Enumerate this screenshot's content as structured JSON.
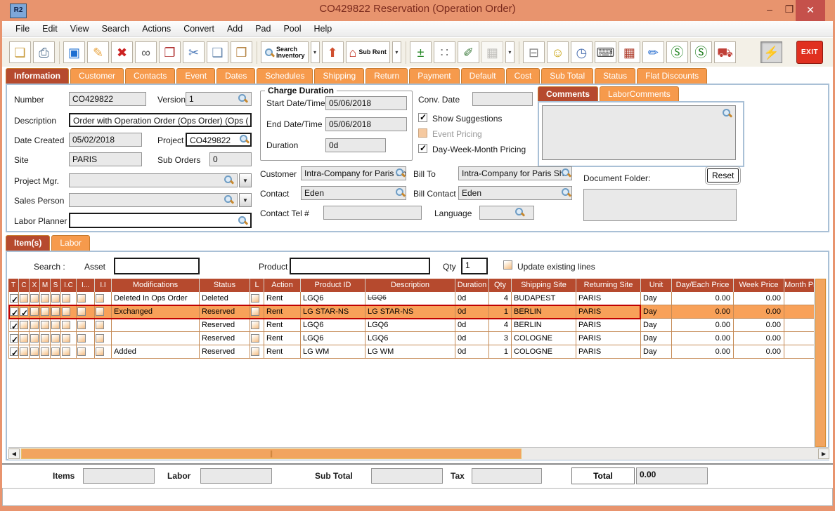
{
  "window": {
    "icon_text": "R2",
    "title": "CO429822 Reservation (Operation Order)",
    "controls": {
      "minimize": "–",
      "maximize": "❐",
      "close": "✕"
    }
  },
  "menu": {
    "items": [
      "File",
      "Edit",
      "View",
      "Search",
      "Actions",
      "Convert",
      "Add",
      "Pad",
      "Pool",
      "Help"
    ]
  },
  "toolbar": {
    "buttons": [
      {
        "name": "new-document",
        "glyph": "❏",
        "tint": "#c89a3a"
      },
      {
        "name": "print",
        "glyph": "⎙",
        "tint": "#4a6a8a"
      },
      {
        "name": "save",
        "glyph": "▣",
        "tint": "#1d6fd1",
        "sep": true
      },
      {
        "name": "edit-pencil",
        "glyph": "✎",
        "tint": "#e8a33d"
      },
      {
        "name": "delete",
        "glyph": "✖",
        "tint": "#cc2222"
      },
      {
        "name": "find-binoculars",
        "glyph": "∞",
        "tint": "#555555"
      },
      {
        "name": "copy-transfer",
        "glyph": "❐",
        "tint": "#b03030"
      },
      {
        "name": "cut-scissors",
        "glyph": "✂",
        "tint": "#4a78b8"
      },
      {
        "name": "copy",
        "glyph": "❑",
        "tint": "#6a8ab0"
      },
      {
        "name": "paste-clipboard",
        "glyph": "❒",
        "tint": "#b8884a"
      },
      {
        "name": "search-inventory",
        "mag": true,
        "label": "Search\nInventory",
        "wide": true,
        "dropdown": true,
        "sep": true
      },
      {
        "name": "product-cube",
        "glyph": "⬆",
        "tint": "#d05030"
      },
      {
        "name": "sub-rent-factory",
        "glyph": "⌂",
        "tint": "#c03020",
        "label": "Sub Rent",
        "wide": true,
        "dropdown": true
      },
      {
        "name": "add-remove-lines",
        "glyph": "±",
        "tint": "#2a8a2a",
        "sep": true
      },
      {
        "name": "pool-spheres",
        "glyph": "∷",
        "tint": "#777777"
      },
      {
        "name": "notes-pad",
        "glyph": "✐",
        "tint": "#3a7a3a"
      },
      {
        "name": "schedule-pad",
        "glyph": "▦",
        "tint": "#9a9a9a",
        "dropdown": true,
        "disabled": true
      },
      {
        "name": "hierarchy",
        "glyph": "⊟",
        "tint": "#8a8a8a",
        "sep": true
      },
      {
        "name": "smiley",
        "glyph": "☺",
        "tint": "#caa515"
      },
      {
        "name": "folder-history",
        "glyph": "◷",
        "tint": "#4a6fb0"
      },
      {
        "name": "keyboard-key",
        "glyph": "⌨",
        "tint": "#555555"
      },
      {
        "name": "cube-stack",
        "glyph": "▦",
        "tint": "#b04030"
      },
      {
        "name": "edit-document",
        "glyph": "✏",
        "tint": "#2a6fd0"
      },
      {
        "name": "currency-forward",
        "glyph": "Ⓢ",
        "tint": "#2a8a2a"
      },
      {
        "name": "currency-notes",
        "glyph": "Ⓢ",
        "tint": "#1a7a1a"
      },
      {
        "name": "truck",
        "glyph": "⛟",
        "tint": "#c04038"
      },
      {
        "name": "lightning",
        "glyph": "⚡",
        "tint": "#d4a017",
        "pressed": true,
        "gap": 32
      },
      {
        "name": "exit",
        "glyph": "EXIT",
        "exit": true
      }
    ]
  },
  "main_tabs": [
    {
      "label": "Information",
      "active": true
    },
    {
      "label": "Customer"
    },
    {
      "label": "Contacts"
    },
    {
      "label": "Event"
    },
    {
      "label": "Dates"
    },
    {
      "label": "Schedules"
    },
    {
      "label": "Shipping"
    },
    {
      "label": "Return"
    },
    {
      "label": "Payment"
    },
    {
      "label": "Default"
    },
    {
      "label": "Cost"
    },
    {
      "label": "Sub Total"
    },
    {
      "label": "Status"
    },
    {
      "label": "Flat Discounts"
    }
  ],
  "info": {
    "number_label": "Number",
    "number_value": "CO429822",
    "version_label": "Version",
    "version_value": "1",
    "description_label": "Description",
    "description_value": "Order with Operation Order (Ops Order) (Ops (",
    "date_created_label": "Date Created",
    "date_created_value": "05/02/2018",
    "project_label": "Project",
    "project_value": "CO429822",
    "site_label": "Site",
    "site_value": "PARIS",
    "sub_orders_label": "Sub Orders",
    "sub_orders_value": "0",
    "project_mgr_label": "Project Mgr.",
    "project_mgr_value": "",
    "sales_person_label": "Sales Person",
    "sales_person_value": "",
    "labor_planner_label": "Labor Planner",
    "labor_planner_value": ""
  },
  "charge": {
    "legend": "Charge Duration",
    "start_label": "Start Date/Time",
    "start_value": "05/06/2018",
    "end_label": "End Date/Time",
    "end_value": "05/06/2018",
    "duration_label": "Duration",
    "duration_value": "0d"
  },
  "conv": {
    "label": "Conv. Date",
    "value": ""
  },
  "options": [
    {
      "label": "Show Suggestions",
      "checked": true
    },
    {
      "label": "Event Pricing",
      "checked": false,
      "disabled": true
    },
    {
      "label": "Day-Week-Month Pricing",
      "checked": true
    }
  ],
  "comments": {
    "tabs": [
      {
        "label": "Comments",
        "active": true
      },
      {
        "label": "LaborComments"
      }
    ],
    "text": ""
  },
  "parties": {
    "customer_label": "Customer",
    "customer_value": "Intra-Company for Paris Sh",
    "billto_label": "Bill To",
    "billto_value": "Intra-Company for Paris Sh",
    "contact_label": "Contact",
    "contact_value": "Eden",
    "billcontact_label": "Bill Contact",
    "billcontact_value": "Eden",
    "tel_label": "Contact Tel #",
    "tel_value": "",
    "language_label": "Language",
    "language_value": ""
  },
  "docfolder": {
    "label": "Document Folder:",
    "reset_label": "Reset",
    "value": ""
  },
  "items_section": {
    "tabs": [
      {
        "label": "Item(s)",
        "active": true
      },
      {
        "label": "Labor"
      }
    ],
    "search_label": "Search :",
    "asset_label": "Asset",
    "asset_value": "",
    "product_label": "Product",
    "product_value": "",
    "qty_label": "Qty",
    "qty_value": "1",
    "update_label": "Update existing lines",
    "update_checked": false
  },
  "grid": {
    "check_columns": [
      "T",
      "C",
      "X",
      "M",
      "S",
      "I.C",
      "I...",
      "I.I"
    ],
    "columns": [
      "Modifications",
      "Status",
      "L",
      "Action",
      "Product ID",
      "Description",
      "Duration",
      "Qty",
      "Shipping Site",
      "Returning Site",
      "Unit",
      "Day/Each Price",
      "Week Price",
      "Month Price"
    ],
    "rows": [
      {
        "checks": [
          1,
          0,
          0,
          0,
          0,
          0,
          0,
          0
        ],
        "modifications": "Deleted In Ops Order",
        "status": "Deleted",
        "l": 0,
        "action": "Rent",
        "product_id": "LGQ6",
        "description": "LGQ6",
        "desc_strike": true,
        "duration": "0d",
        "qty": "4",
        "shipping_site": "BUDAPEST",
        "returning_site": "PARIS",
        "unit": "Day",
        "day_each_price": "0.00",
        "week_price": "0.00",
        "month_price": ""
      },
      {
        "checks": [
          1,
          1,
          0,
          0,
          0,
          0,
          0,
          0
        ],
        "modifications": "Exchanged",
        "status": "Reserved",
        "l": 0,
        "action": "Rent",
        "product_id": "LG STAR-NS",
        "description": "LG STAR-NS",
        "duration": "0d",
        "qty": "1",
        "shipping_site": "BERLIN",
        "returning_site": "PARIS",
        "unit": "Day",
        "day_each_price": "0.00",
        "week_price": "0.00",
        "month_price": "",
        "highlighted": true
      },
      {
        "checks": [
          1,
          0,
          0,
          0,
          0,
          0,
          0,
          0
        ],
        "modifications": "",
        "status": "Reserved",
        "l": 0,
        "action": "Rent",
        "product_id": "LGQ6",
        "description": "LGQ6",
        "duration": "0d",
        "qty": "4",
        "shipping_site": "BERLIN",
        "returning_site": "PARIS",
        "unit": "Day",
        "day_each_price": "0.00",
        "week_price": "0.00",
        "month_price": ""
      },
      {
        "checks": [
          1,
          0,
          0,
          0,
          0,
          0,
          0,
          0
        ],
        "modifications": "",
        "status": "Reserved",
        "l": 0,
        "action": "Rent",
        "product_id": "LGQ6",
        "description": "LGQ6",
        "duration": "0d",
        "qty": "3",
        "shipping_site": "COLOGNE",
        "returning_site": "PARIS",
        "unit": "Day",
        "day_each_price": "0.00",
        "week_price": "0.00",
        "month_price": ""
      },
      {
        "checks": [
          1,
          0,
          0,
          0,
          0,
          0,
          0,
          0
        ],
        "modifications": "Added",
        "status": "Reserved",
        "l": 0,
        "action": "Rent",
        "product_id": "LG WM",
        "description": "LG WM",
        "duration": "0d",
        "qty": "1",
        "shipping_site": "COLOGNE",
        "returning_site": "PARIS",
        "unit": "Day",
        "day_each_price": "0.00",
        "week_price": "0.00",
        "month_price": ""
      }
    ]
  },
  "totals": {
    "items_label": "Items",
    "labor_label": "Labor",
    "subtotal_label": "Sub Total",
    "tax_label": "Tax",
    "total_label": "Total",
    "total_value": "0.00"
  }
}
